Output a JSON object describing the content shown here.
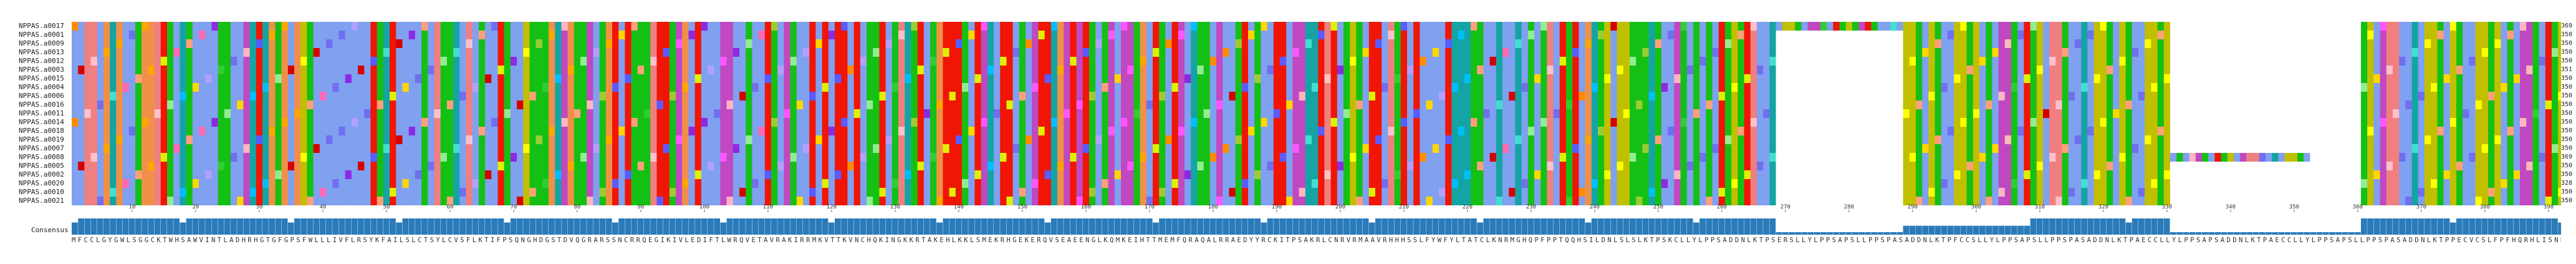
{
  "alignment": {
    "sequence_names": [
      "NPPAS.a0017",
      "NPPAS.a0001",
      "NPPAS.a0009",
      "NPPAS.a0013",
      "NPPAS.a0012",
      "NPPAS.a0003",
      "NPPAS.a0015",
      "NPPAS.a0004",
      "NPPAS.a0006",
      "NPPAS.a0016",
      "NPPAS.a0011",
      "NPPAS.a0014",
      "NPPAS.a0018",
      "NPPAS.a0019",
      "NPPAS.a0007",
      "NPPAS.a0008",
      "NPPAS.a0005",
      "NPPAS.a0002",
      "NPPAS.a0020",
      "NPPAS.a0010",
      "NPPAS.a0021"
    ],
    "sequence_lengths": [
      369,
      350,
      350,
      350,
      350,
      351,
      350,
      350,
      350,
      350,
      350,
      350,
      350,
      350,
      350,
      369,
      350,
      350,
      328,
      350,
      350
    ],
    "ruler_ticks": [
      10,
      20,
      30,
      40,
      50,
      60,
      70,
      80,
      90,
      100,
      110,
      120,
      130,
      140,
      150,
      160,
      170,
      180,
      190,
      200,
      210,
      220,
      230,
      240,
      250,
      260,
      270,
      280,
      290,
      300,
      310,
      320,
      330,
      340,
      350,
      360,
      370,
      380,
      390
    ],
    "consensus_label": "Consensus",
    "consensus_sequence": "MFCCLGYGWLSGGCKTWHSAWVINTLADHRHGTGFGPSFWLLLIVFLRSYKFAILSLCTSYLCVSFLKTIFPSQNGHDGSTDVQGRARSSNCRRQEGIKIVLEDIFTLWRQVETAVRAKIRRMKVTTKVNCHQKINGKKRTAKEHLKKLSMEKRHGEKERQVSEAEENGLKQMKEIHTTMEMFQRAQALRRAEDYYRCKITPSAKRLCNRVRMAAVRHHHSSLFYWFYLTATCLKNRMGHQPFPPTQQHSILDNLSLSLKTPSKCLLYLPPSADDNLKTPSERSLLYLPPSAPSLLPPSPASADDNLKTPFCCSLLYLPPSAPSLLPPSPASADDNLKTPAECCLLYLPPSAPSADDNLKTPAECCLLYLPPSAPSLLPPSPASADDNLKTPPECVCSLFPFHQRHLISNN"
  }
}
